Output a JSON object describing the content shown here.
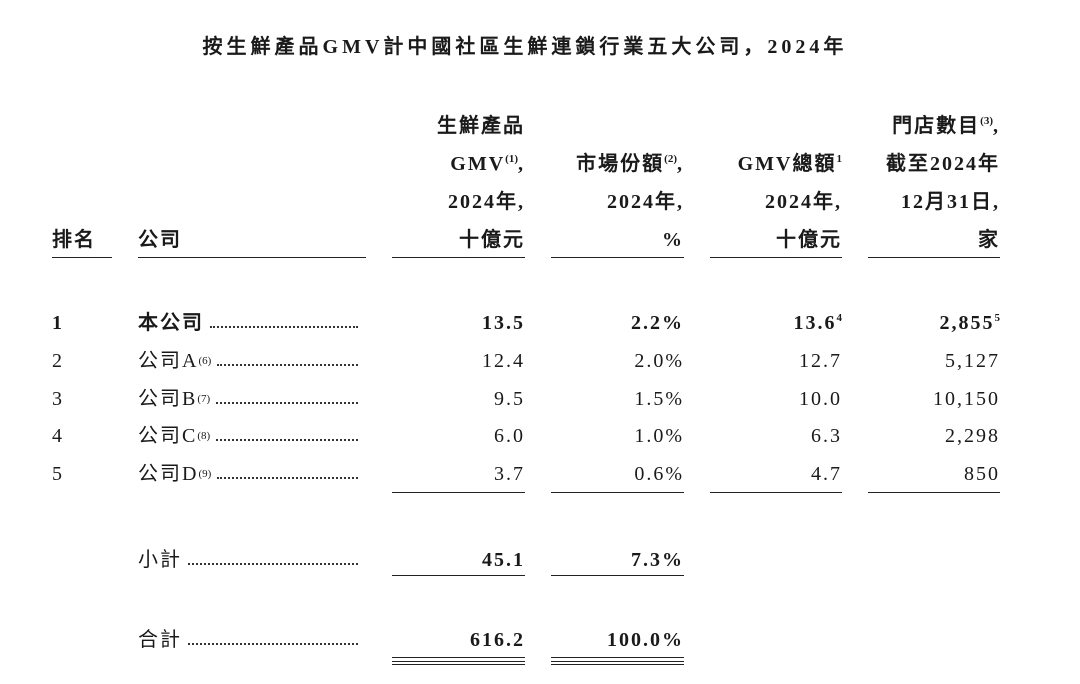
{
  "title": "按生鮮產品GMV計中國社區生鮮連鎖行業五大公司，2024年",
  "table": {
    "columns": [
      {
        "lines": [
          [
            {
              "text": "排名"
            }
          ]
        ]
      },
      {
        "lines": [
          [
            {
              "text": "公司"
            }
          ]
        ]
      },
      {
        "lines": [
          [
            {
              "text": "生鮮產品"
            }
          ],
          [
            {
              "text": "GMV"
            },
            {
              "text": "(1)",
              "sup": true
            },
            {
              "text": ","
            }
          ],
          [
            {
              "text": "2024年,"
            }
          ],
          [
            {
              "text": "十億元"
            }
          ]
        ]
      },
      {
        "lines": [
          [
            {
              "text": "市場份額"
            },
            {
              "text": "(2)",
              "sup": true
            },
            {
              "text": ","
            }
          ],
          [
            {
              "text": "2024年,"
            }
          ],
          [
            {
              "text": "%"
            }
          ]
        ]
      },
      {
        "lines": [
          [
            {
              "text": "GMV總額"
            },
            {
              "text": "1",
              "sup": true
            }
          ],
          [
            {
              "text": "2024年,"
            }
          ],
          [
            {
              "text": "十億元"
            }
          ]
        ]
      },
      {
        "lines": [
          [
            {
              "text": "門店數目"
            },
            {
              "text": "(3)",
              "sup": true
            },
            {
              "text": ","
            }
          ],
          [
            {
              "text": "截至2024年"
            }
          ],
          [
            {
              "text": "12月31日,"
            }
          ],
          [
            {
              "text": "家"
            }
          ]
        ]
      }
    ],
    "rows": [
      {
        "rank": "1",
        "bold": true,
        "company": [
          {
            "text": "本公司"
          }
        ],
        "cells": [
          {
            "text": "13.5"
          },
          {
            "text": "2.2%"
          },
          {
            "text": "13.6",
            "sup": "4"
          },
          {
            "text": "2,855",
            "sup": "5"
          }
        ]
      },
      {
        "rank": "2",
        "company": [
          {
            "text": "公司A"
          },
          {
            "text": "(6)",
            "sup": true
          }
        ],
        "cells": [
          {
            "text": "12.4"
          },
          {
            "text": "2.0%"
          },
          {
            "text": "12.7"
          },
          {
            "text": "5,127"
          }
        ]
      },
      {
        "rank": "3",
        "company": [
          {
            "text": "公司B"
          },
          {
            "text": "(7)",
            "sup": true
          }
        ],
        "cells": [
          {
            "text": "9.5"
          },
          {
            "text": "1.5%"
          },
          {
            "text": "10.0"
          },
          {
            "text": "10,150"
          }
        ]
      },
      {
        "rank": "4",
        "company": [
          {
            "text": "公司C"
          },
          {
            "text": "(8)",
            "sup": true
          }
        ],
        "cells": [
          {
            "text": "6.0"
          },
          {
            "text": "1.0%"
          },
          {
            "text": "6.3"
          },
          {
            "text": "2,298"
          }
        ]
      },
      {
        "rank": "5",
        "company": [
          {
            "text": "公司D"
          },
          {
            "text": "(9)",
            "sup": true
          }
        ],
        "cells": [
          {
            "text": "3.7"
          },
          {
            "text": "0.6%"
          },
          {
            "text": "4.7"
          },
          {
            "text": "850"
          }
        ]
      }
    ],
    "subtotal": {
      "label": "小計",
      "cells": [
        "45.1",
        "7.3%"
      ]
    },
    "total": {
      "label": "合計",
      "cells": [
        "616.2",
        "100.0%"
      ]
    }
  }
}
